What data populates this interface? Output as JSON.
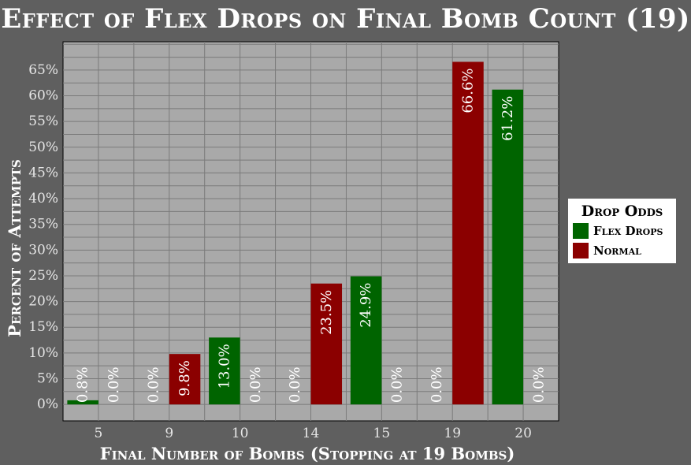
{
  "chart_data": {
    "type": "bar",
    "title": "Effect of Flex Drops on Final Bomb Count (19)",
    "xlabel": "Final Number of Bombs (Stopping at 19 Bombs)",
    "ylabel": "Percent of Attempts",
    "categories": [
      "5",
      "9",
      "10",
      "14",
      "15",
      "19",
      "20"
    ],
    "series": [
      {
        "name": "Flex Drops",
        "color": "#006400",
        "values": [
          0.8,
          0.0,
          13.0,
          0.0,
          24.9,
          0.0,
          61.2
        ]
      },
      {
        "name": "Normal",
        "color": "#8b0000",
        "values": [
          0.0,
          9.8,
          0.0,
          23.5,
          0.0,
          66.6,
          0.0
        ]
      }
    ],
    "value_labels": [
      [
        "0.8%",
        "0.0%",
        "13.0%",
        "0.0%",
        "24.9%",
        "0.0%",
        "61.2%"
      ],
      [
        "0.0%",
        "9.8%",
        "0.0%",
        "23.5%",
        "0.0%",
        "66.6%",
        "0.0%"
      ]
    ],
    "yticks": [
      0,
      5,
      10,
      15,
      20,
      25,
      30,
      35,
      40,
      45,
      50,
      55,
      60,
      65
    ],
    "ytick_labels": [
      "0%",
      "5%",
      "10%",
      "15%",
      "20%",
      "25%",
      "30%",
      "35%",
      "40%",
      "45%",
      "50%",
      "55%",
      "60%",
      "65%"
    ],
    "ylim": [
      -3.2,
      70.5
    ],
    "grid": true,
    "legend_title": "Drop Odds",
    "legend_position": "right",
    "plot_background": "#a9a9a9",
    "page_background": "#5f5f5f"
  }
}
